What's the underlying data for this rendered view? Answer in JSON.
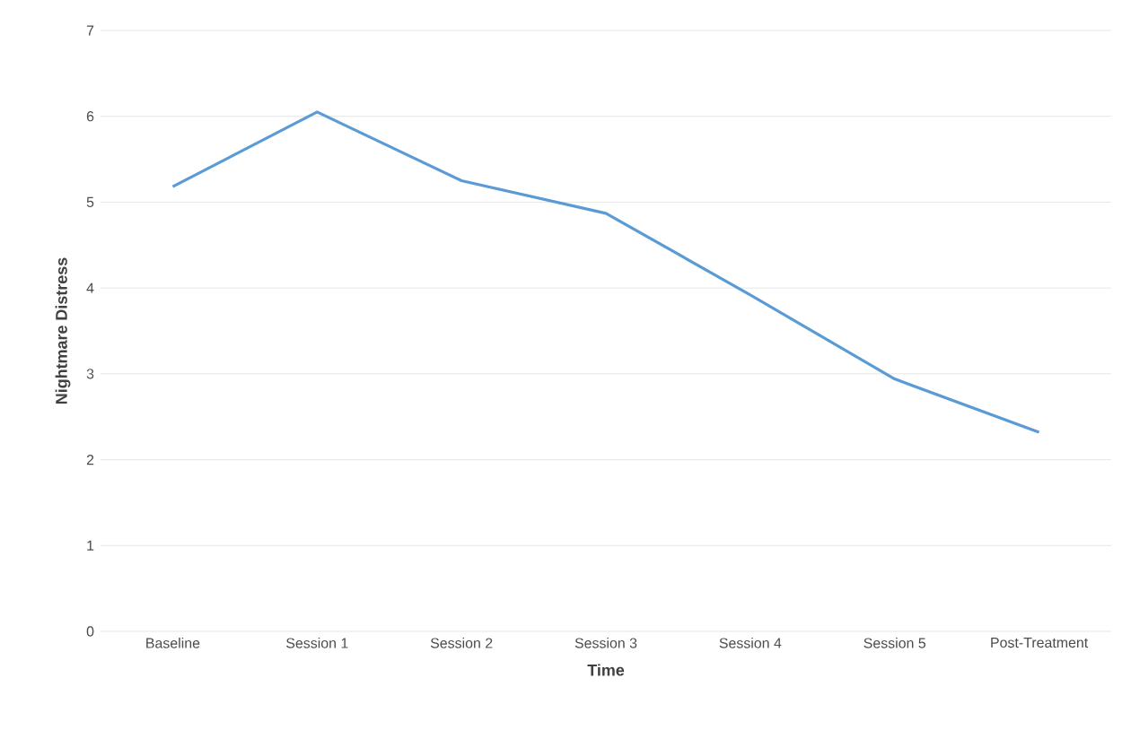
{
  "chart_data": {
    "type": "line",
    "xlabel": "Time",
    "ylabel": "Nightmare Distress",
    "categories": [
      "Baseline",
      "Session 1",
      "Session 2",
      "Session 3",
      "Session 4",
      "Session 5",
      "Post-Treatment"
    ],
    "series": [
      {
        "color": "#5b9bd5",
        "values": [
          5.18,
          6.05,
          5.25,
          4.87,
          3.92,
          2.94,
          2.32
        ]
      }
    ],
    "ylim": [
      0,
      7
    ],
    "yticks": [
      0,
      1,
      2,
      3,
      4,
      5,
      6,
      7
    ],
    "grid": "y",
    "marker": "none",
    "line_style": "solid"
  }
}
